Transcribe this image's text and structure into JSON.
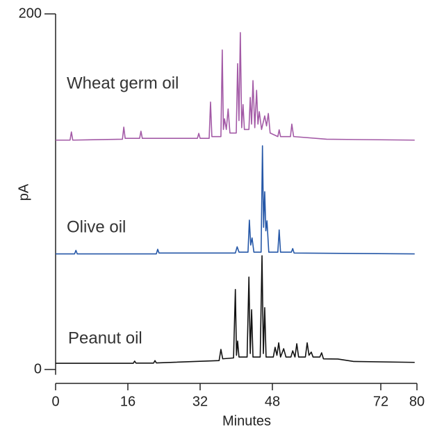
{
  "chart_data": {
    "type": "line",
    "x_label": "Minutes",
    "y_label": "pA",
    "xlim": [
      0,
      80
    ],
    "xticks": [
      0,
      16,
      32,
      48,
      72,
      80
    ],
    "ylim": [
      -3,
      200
    ],
    "yticks": [
      0,
      200
    ],
    "series": [
      {
        "name": "Peanut oil",
        "color": "#111111",
        "x": [
          0,
          17.2,
          17.5,
          17.8,
          21.7,
          22,
          22.3,
          36.2,
          36.6,
          37,
          39.4,
          39.8,
          40.05,
          40.3,
          40.6,
          42.4,
          42.8,
          43.1,
          43.4,
          43.7,
          45.3,
          45.7,
          46,
          46.3,
          46.6,
          48.2,
          48.6,
          49,
          49.4,
          49.8,
          50.5,
          51,
          52.1,
          52.5,
          53,
          53.4,
          53.8,
          55.3,
          55.7,
          56.1,
          56.6,
          57,
          58.5,
          58.9,
          59.3,
          62.5,
          66,
          79.5
        ],
        "values": [
          3.5,
          3.5,
          4.7,
          3.6,
          3.6,
          5,
          3.7,
          5,
          11.3,
          6,
          6.5,
          45,
          8,
          16,
          7,
          7,
          52,
          9,
          33.6,
          7,
          7,
          64,
          9,
          34.8,
          7,
          7,
          12.5,
          8,
          15,
          7,
          11.7,
          7,
          7,
          10.5,
          7,
          14.5,
          7,
          7,
          15,
          8,
          9.8,
          7,
          7,
          9.4,
          6,
          5.9,
          4.5,
          4
        ]
      },
      {
        "name": "Olive oil",
        "color": "#2557a7",
        "x": [
          0,
          4.2,
          4.5,
          4.8,
          22.3,
          22.6,
          22.9,
          39.8,
          40.2,
          40.6,
          42.6,
          42.9,
          43.2,
          43.5,
          43.9,
          45.5,
          45.8,
          46.05,
          46.3,
          46.55,
          46.8,
          47.2,
          49.2,
          49.5,
          49.8,
          52.2,
          52.5,
          52.8,
          79.5
        ],
        "values": [
          65,
          65,
          67,
          65,
          65,
          67.6,
          65.5,
          65.5,
          69,
          66,
          66,
          84,
          70,
          74,
          66,
          66,
          125.8,
          80,
          100,
          78,
          83.6,
          66,
          66,
          78.5,
          66,
          66,
          68,
          65.5,
          65
        ]
      },
      {
        "name": "Wheat germ oil",
        "color": "#a35aa6",
        "x": [
          0,
          3.2,
          3.5,
          3.8,
          14.8,
          15.1,
          15.4,
          18.6,
          18.9,
          19.2,
          31.4,
          31.7,
          32,
          34,
          34.3,
          34.6,
          36.6,
          36.9,
          37.15,
          37.4,
          37.8,
          38.2,
          38.6,
          40,
          40.3,
          40.6,
          40.9,
          41.2,
          41.5,
          41.8,
          42.8,
          43.1,
          43.4,
          43.7,
          44.1,
          44.5,
          44.8,
          45.1,
          45.6,
          46.3,
          46.7,
          47.1,
          47.5,
          49.2,
          49.5,
          49.8,
          52,
          52.3,
          52.7,
          60,
          79.5
        ],
        "values": [
          129,
          129,
          133.6,
          129,
          129.5,
          136.3,
          130,
          130,
          134,
          130,
          130,
          132.8,
          130,
          130,
          150.4,
          131,
          131,
          179.7,
          135,
          141,
          135,
          146.5,
          133,
          133,
          172,
          140,
          189.5,
          136,
          149,
          135,
          135,
          153,
          138,
          162.5,
          136,
          157,
          138,
          145,
          135,
          142.6,
          137,
          144,
          133,
          131,
          134.8,
          131,
          131,
          138,
          131,
          129.5,
          129
        ]
      }
    ]
  }
}
